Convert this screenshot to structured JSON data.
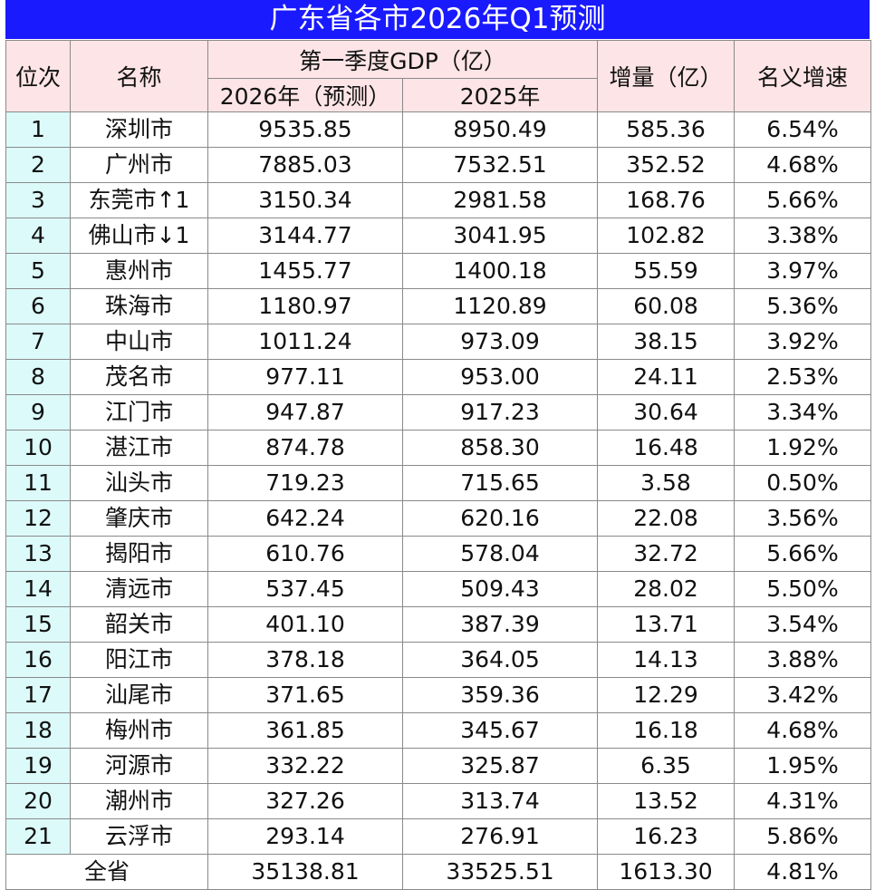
{
  "title": "广东省各市2026年Q1预测",
  "headers": {
    "rank": "位次",
    "name": "名称",
    "gdp_group": "第一季度GDP（亿）",
    "gdp_2026": "2026年（预测）",
    "gdp_2025": "2025年",
    "increase": "增量（亿）",
    "growth": "名义增速"
  },
  "rows": [
    {
      "rank": "1",
      "name": "深圳市",
      "gdp_2026": "9535.85",
      "gdp_2025": "8950.49",
      "increase": "585.36",
      "growth": "6.54%"
    },
    {
      "rank": "2",
      "name": "广州市",
      "gdp_2026": "7885.03",
      "gdp_2025": "7532.51",
      "increase": "352.52",
      "growth": "4.68%"
    },
    {
      "rank": "3",
      "name": "东莞市↑1",
      "gdp_2026": "3150.34",
      "gdp_2025": "2981.58",
      "increase": "168.76",
      "growth": "5.66%"
    },
    {
      "rank": "4",
      "name": "佛山市↓1",
      "gdp_2026": "3144.77",
      "gdp_2025": "3041.95",
      "increase": "102.82",
      "growth": "3.38%"
    },
    {
      "rank": "5",
      "name": "惠州市",
      "gdp_2026": "1455.77",
      "gdp_2025": "1400.18",
      "increase": "55.59",
      "growth": "3.97%"
    },
    {
      "rank": "6",
      "name": "珠海市",
      "gdp_2026": "1180.97",
      "gdp_2025": "1120.89",
      "increase": "60.08",
      "growth": "5.36%"
    },
    {
      "rank": "7",
      "name": "中山市",
      "gdp_2026": "1011.24",
      "gdp_2025": "973.09",
      "increase": "38.15",
      "growth": "3.92%"
    },
    {
      "rank": "8",
      "name": "茂名市",
      "gdp_2026": "977.11",
      "gdp_2025": "953.00",
      "increase": "24.11",
      "growth": "2.53%"
    },
    {
      "rank": "9",
      "name": "江门市",
      "gdp_2026": "947.87",
      "gdp_2025": "917.23",
      "increase": "30.64",
      "growth": "3.34%"
    },
    {
      "rank": "10",
      "name": "湛江市",
      "gdp_2026": "874.78",
      "gdp_2025": "858.30",
      "increase": "16.48",
      "growth": "1.92%"
    },
    {
      "rank": "11",
      "name": "汕头市",
      "gdp_2026": "719.23",
      "gdp_2025": "715.65",
      "increase": "3.58",
      "growth": "0.50%"
    },
    {
      "rank": "12",
      "name": "肇庆市",
      "gdp_2026": "642.24",
      "gdp_2025": "620.16",
      "increase": "22.08",
      "growth": "3.56%"
    },
    {
      "rank": "13",
      "name": "揭阳市",
      "gdp_2026": "610.76",
      "gdp_2025": "578.04",
      "increase": "32.72",
      "growth": "5.66%"
    },
    {
      "rank": "14",
      "name": "清远市",
      "gdp_2026": "537.45",
      "gdp_2025": "509.43",
      "increase": "28.02",
      "growth": "5.50%"
    },
    {
      "rank": "15",
      "name": "韶关市",
      "gdp_2026": "401.10",
      "gdp_2025": "387.39",
      "increase": "13.71",
      "growth": "3.54%"
    },
    {
      "rank": "16",
      "name": "阳江市",
      "gdp_2026": "378.18",
      "gdp_2025": "364.05",
      "increase": "14.13",
      "growth": "3.88%"
    },
    {
      "rank": "17",
      "name": "汕尾市",
      "gdp_2026": "371.65",
      "gdp_2025": "359.36",
      "increase": "12.29",
      "growth": "3.42%"
    },
    {
      "rank": "18",
      "name": "梅州市",
      "gdp_2026": "361.85",
      "gdp_2025": "345.67",
      "increase": "16.18",
      "growth": "4.68%"
    },
    {
      "rank": "19",
      "name": "河源市",
      "gdp_2026": "332.22",
      "gdp_2025": "325.87",
      "increase": "6.35",
      "growth": "1.95%"
    },
    {
      "rank": "20",
      "name": "潮州市",
      "gdp_2026": "327.26",
      "gdp_2025": "313.74",
      "increase": "13.52",
      "growth": "4.31%"
    },
    {
      "rank": "21",
      "name": "云浮市",
      "gdp_2026": "293.14",
      "gdp_2025": "276.91",
      "increase": "16.23",
      "growth": "5.86%"
    }
  ],
  "total": {
    "label": "全省",
    "gdp_2026": "35138.81",
    "gdp_2025": "33525.51",
    "increase": "1613.30",
    "growth": "4.81%"
  },
  "colors": {
    "title_bg": "#1a1aff",
    "header_bg": "#fde4e6",
    "rank_bg": "#dcfafa",
    "grid": "#8a8a8a"
  }
}
